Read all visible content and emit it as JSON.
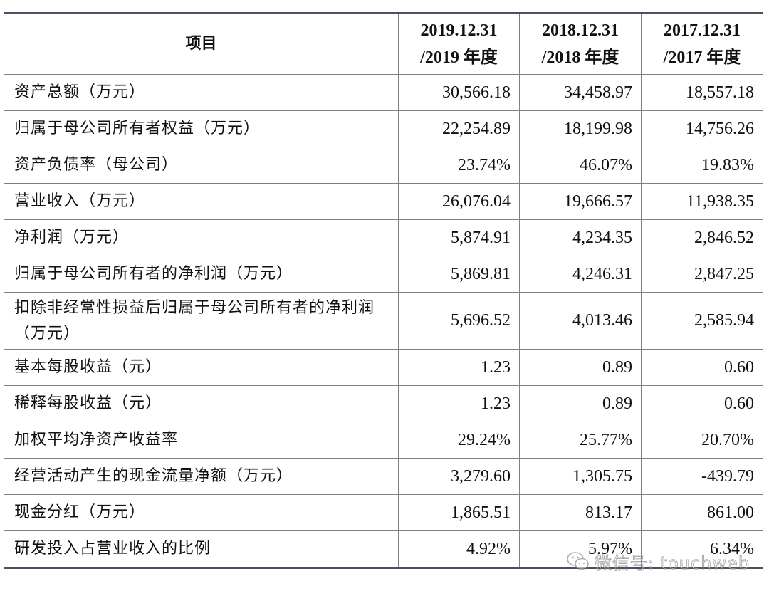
{
  "table": {
    "header": {
      "item": "项目",
      "columns": [
        {
          "line1": "2019.12.31",
          "line2": "/2019 年度"
        },
        {
          "line1": "2018.12.31",
          "line2": "/2018 年度"
        },
        {
          "line1": "2017.12.31",
          "line2": "/2017 年度"
        }
      ]
    },
    "rows": [
      {
        "label": "资产总额（万元）",
        "v2019": "30,566.18",
        "v2018": "34,458.97",
        "v2017": "18,557.18"
      },
      {
        "label": "归属于母公司所有者权益（万元）",
        "v2019": "22,254.89",
        "v2018": "18,199.98",
        "v2017": "14,756.26"
      },
      {
        "label": "资产负债率（母公司）",
        "v2019": "23.74%",
        "v2018": "46.07%",
        "v2017": "19.83%"
      },
      {
        "label": "营业收入（万元）",
        "v2019": "26,076.04",
        "v2018": "19,666.57",
        "v2017": "11,938.35"
      },
      {
        "label": "净利润（万元）",
        "v2019": "5,874.91",
        "v2018": "4,234.35",
        "v2017": "2,846.52"
      },
      {
        "label": "归属于母公司所有者的净利润（万元）",
        "v2019": "5,869.81",
        "v2018": "4,246.31",
        "v2017": "2,847.25"
      },
      {
        "label": "扣除非经常性损益后归属于母公司所有者的净利润（万元）",
        "v2019": "5,696.52",
        "v2018": "4,013.46",
        "v2017": "2,585.94"
      },
      {
        "label": "基本每股收益（元）",
        "v2019": "1.23",
        "v2018": "0.89",
        "v2017": "0.60"
      },
      {
        "label": "稀释每股收益（元）",
        "v2019": "1.23",
        "v2018": "0.89",
        "v2017": "0.60"
      },
      {
        "label": "加权平均净资产收益率",
        "v2019": "29.24%",
        "v2018": "25.77%",
        "v2017": "20.70%"
      },
      {
        "label": "经营活动产生的现金流量净额（万元）",
        "v2019": "3,279.60",
        "v2018": "1,305.75",
        "v2017": "-439.79"
      },
      {
        "label": "现金分红（万元）",
        "v2019": "1,865.51",
        "v2018": "813.17",
        "v2017": "861.00"
      },
      {
        "label": "研发投入占营业收入的比例",
        "v2019": "4.92%",
        "v2018": "5.97%",
        "v2017": "6.34%"
      }
    ]
  },
  "watermark": {
    "text": "微信号: touchweb",
    "icon": "wechat-icon"
  }
}
